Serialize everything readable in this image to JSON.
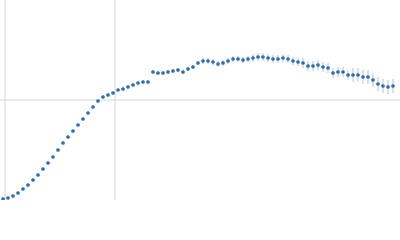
{
  "chart_data": {
    "type": "scatter",
    "x": [
      3,
      8,
      13,
      18,
      23,
      28,
      33,
      38,
      43,
      48,
      53,
      58,
      63,
      68,
      73,
      78,
      83,
      88,
      93,
      98,
      103,
      108,
      113,
      118,
      123,
      128,
      133,
      138,
      143,
      148,
      153,
      158,
      163,
      168,
      173,
      178,
      183,
      188,
      193,
      198,
      203,
      208,
      213,
      218,
      223,
      228,
      233,
      238,
      243,
      248,
      253,
      258,
      263,
      268,
      273,
      278,
      283,
      288,
      293,
      298,
      303,
      308,
      313,
      318,
      323,
      328,
      333,
      338,
      343,
      348,
      353,
      358,
      363,
      368,
      373,
      378,
      383,
      388,
      393
    ],
    "values": [
      1,
      2,
      4,
      7,
      11,
      15,
      20,
      25,
      31,
      37,
      43,
      50,
      57,
      63,
      69,
      75,
      81,
      87,
      93,
      99,
      103,
      105,
      107,
      110,
      111,
      113,
      115,
      117,
      118,
      118,
      128,
      127,
      127,
      128,
      129,
      130,
      128,
      131,
      133,
      137,
      139,
      139,
      138,
      136,
      137,
      139,
      141,
      141,
      140,
      141,
      142,
      143,
      143,
      142,
      141,
      141,
      142,
      141,
      139,
      138,
      137,
      134,
      134,
      135,
      133,
      132,
      127,
      128,
      128,
      125,
      125,
      125,
      123,
      123,
      120,
      116,
      114,
      113,
      114
    ],
    "errors": [
      0.5,
      0.5,
      0.5,
      0.5,
      0.5,
      0.5,
      0.5,
      0.5,
      0.5,
      0.5,
      0.5,
      0.5,
      0.5,
      0.5,
      0.5,
      0.5,
      0.5,
      0.5,
      0.5,
      0.5,
      1,
      1,
      1,
      1,
      1,
      1,
      1,
      1,
      1,
      1,
      2,
      2,
      2,
      2,
      2,
      2,
      2,
      2,
      2,
      2,
      3,
      3,
      3,
      3,
      3,
      3,
      3,
      3,
      3,
      3,
      4,
      4,
      4,
      4,
      4,
      4,
      4,
      4,
      4,
      4,
      5,
      5,
      5,
      5,
      5,
      5,
      5,
      5,
      5,
      5,
      7,
      7,
      7,
      7,
      7,
      7,
      7,
      7,
      7
    ],
    "color": "#2f6db5",
    "xlim": [
      0,
      400
    ],
    "ylim": [
      0,
      200
    ],
    "xticks": [
      5,
      115
    ],
    "yticks": [
      100
    ],
    "grid": true
  }
}
